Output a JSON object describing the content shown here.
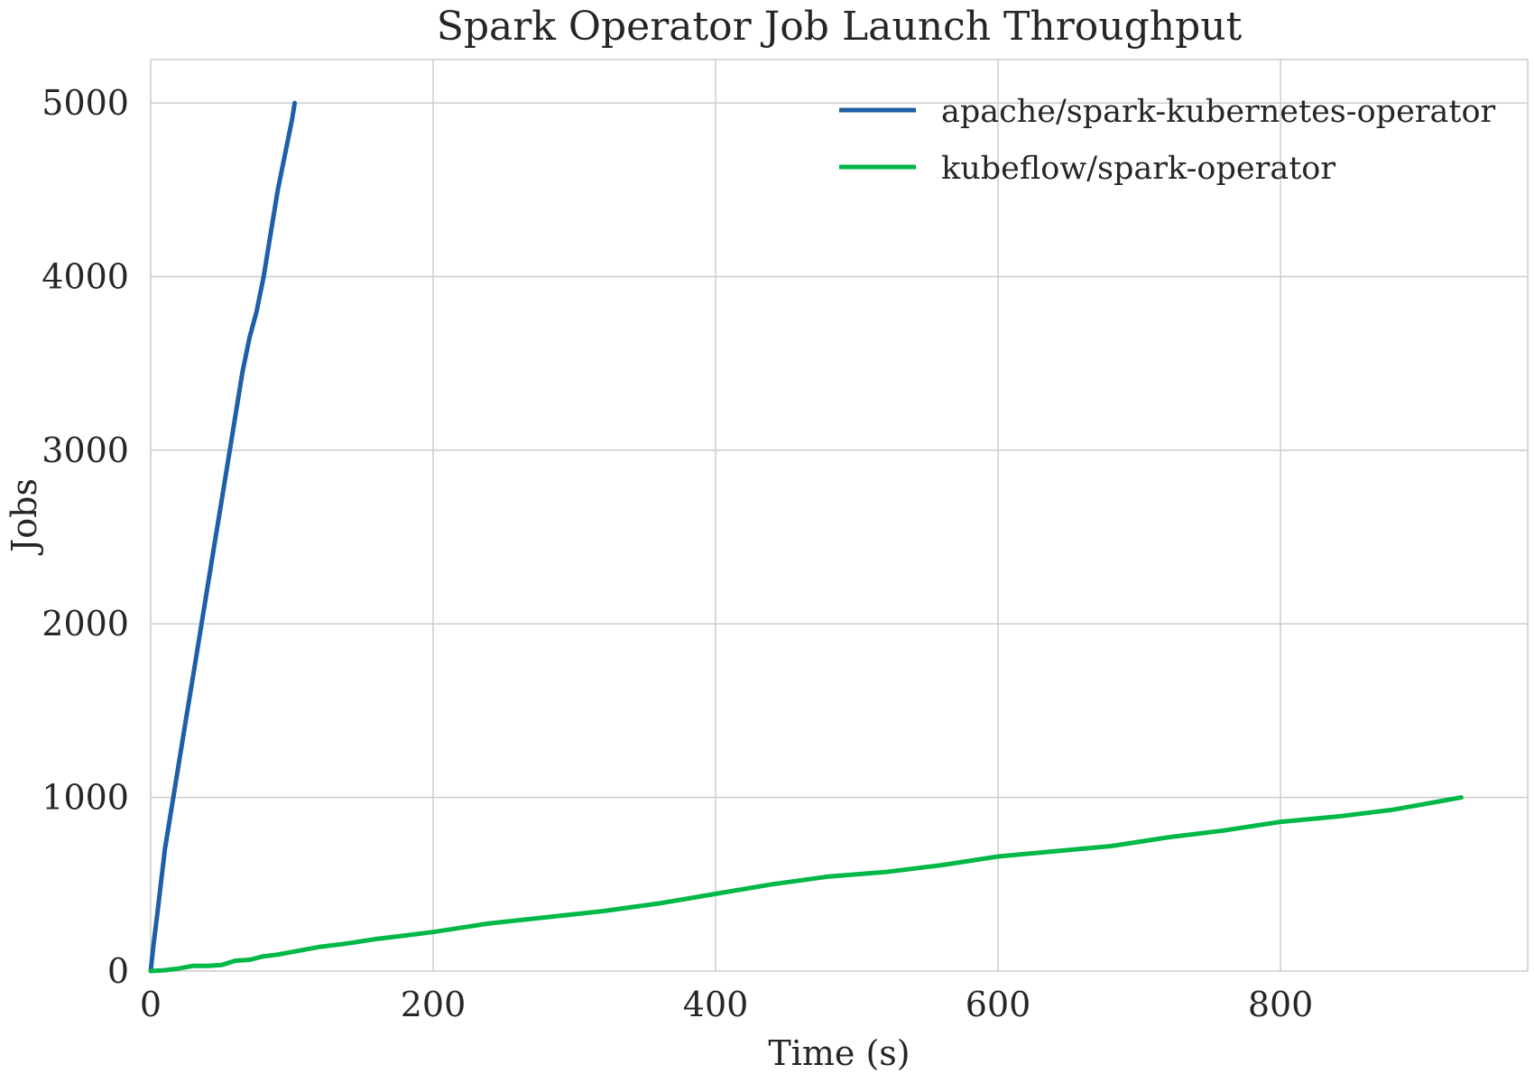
{
  "chart_data": {
    "type": "line",
    "title": "Spark Operator Job Launch Throughput",
    "xlabel": "Time (s)",
    "ylabel": "Jobs",
    "xlim": [
      0,
      975
    ],
    "ylim": [
      0,
      5250
    ],
    "x_ticks": [
      0,
      200,
      400,
      600,
      800
    ],
    "x_tick_labels": [
      "0",
      "200",
      "400",
      "600",
      "800"
    ],
    "y_ticks": [
      0,
      1000,
      2000,
      3000,
      4000,
      5000
    ],
    "y_tick_labels": [
      "0",
      "1000",
      "2000",
      "3000",
      "4000",
      "5000"
    ],
    "grid": true,
    "legend_position": "top-right",
    "series": [
      {
        "name": "apache/spark-kubernetes-operator",
        "color": "#1f5fa6",
        "x": [
          0,
          2,
          5,
          10,
          15,
          20,
          25,
          30,
          35,
          40,
          45,
          50,
          55,
          60,
          65,
          70,
          75,
          80,
          85,
          90,
          95,
          100,
          102
        ],
        "y": [
          0,
          150,
          350,
          700,
          950,
          1200,
          1450,
          1700,
          1950,
          2200,
          2450,
          2700,
          2950,
          3200,
          3450,
          3650,
          3800,
          4000,
          4250,
          4500,
          4700,
          4900,
          5000
        ]
      },
      {
        "name": "kubeflow/spark-operator",
        "color": "#00b845",
        "x": [
          0,
          10,
          20,
          30,
          40,
          50,
          60,
          70,
          80,
          90,
          100,
          120,
          140,
          160,
          180,
          200,
          240,
          280,
          320,
          360,
          400,
          440,
          480,
          520,
          560,
          600,
          640,
          680,
          720,
          760,
          800,
          840,
          880,
          928
        ],
        "y": [
          0,
          5,
          15,
          30,
          30,
          35,
          60,
          65,
          85,
          95,
          110,
          140,
          160,
          185,
          205,
          225,
          275,
          310,
          345,
          390,
          445,
          500,
          545,
          570,
          610,
          660,
          690,
          720,
          770,
          810,
          860,
          890,
          930,
          1000
        ]
      }
    ]
  }
}
